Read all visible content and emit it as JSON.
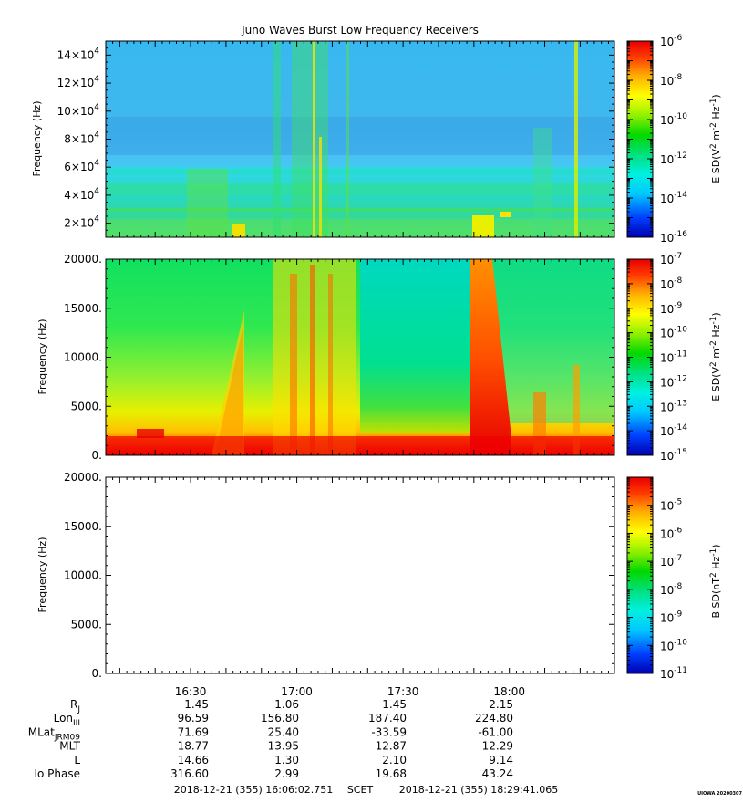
{
  "chart_data": [
    {
      "type": "heatmap",
      "title": "Juno Waves Burst Low Frequency Receivers",
      "ylabel": "Frequency (Hz)",
      "ylim": [
        10000,
        150000
      ],
      "yticks": [
        {
          "m": "2×10",
          "e": "4"
        },
        {
          "m": "4×10",
          "e": "4"
        },
        {
          "m": "6×10",
          "e": "4"
        },
        {
          "m": "8×10",
          "e": "4"
        },
        {
          "m": "10×10",
          "e": "4"
        },
        {
          "m": "12×10",
          "e": "4"
        },
        {
          "m": "14×10",
          "e": "4"
        }
      ],
      "ytick_values": [
        20000,
        40000,
        60000,
        80000,
        100000,
        120000,
        140000
      ],
      "colorbar": {
        "label_main": "E SD(V",
        "label_sup1": "2",
        "label_mid": " m",
        "label_sup2": "-2",
        "label_end": " Hz",
        "label_sup3": "-1",
        "label_close": ")",
        "scale": "log",
        "range": [
          1e-16,
          1e-06
        ],
        "tick_exps": [
          "-6",
          "-8",
          "-10",
          "-12",
          "-14",
          "-16"
        ],
        "tick_values": [
          1e-06,
          1e-08,
          1e-10,
          1e-12,
          1e-14,
          1e-16
        ],
        "colormap": [
          "#0000c0",
          "#0050ff",
          "#00d8ff",
          "#00e890",
          "#00e000",
          "#a8f000",
          "#ffff00",
          "#ffb000",
          "#ff3000",
          "#f00000"
        ]
      }
    },
    {
      "type": "heatmap",
      "ylabel": "Frequency (Hz)",
      "ylim": [
        0,
        20000
      ],
      "yticks": [
        "20000.",
        "15000.",
        "10000.",
        "5000.",
        "0."
      ],
      "ytick_values": [
        20000,
        15000,
        10000,
        5000,
        0
      ],
      "colorbar": {
        "label_main": "E SD(V",
        "label_sup1": "2",
        "label_mid": " m",
        "label_sup2": "-2",
        "label_end": " Hz",
        "label_sup3": "-1",
        "label_close": ")",
        "scale": "log",
        "range": [
          1e-15,
          1e-07
        ],
        "tick_exps": [
          "-7",
          "-8",
          "-9",
          "-10",
          "-11",
          "-12",
          "-13",
          "-14",
          "-15"
        ],
        "tick_values": [
          1e-07,
          1e-08,
          1e-09,
          1e-10,
          1e-11,
          1e-12,
          1e-13,
          1e-14,
          1e-15
        ]
      }
    },
    {
      "type": "heatmap",
      "ylabel": "Frequency (Hz)",
      "ylim": [
        0,
        20000
      ],
      "yticks": [
        "20000.",
        "15000.",
        "10000.",
        "5000.",
        "0."
      ],
      "ytick_values": [
        20000,
        15000,
        10000,
        5000,
        0
      ],
      "colorbar": {
        "label_main": "B SD(nT",
        "label_sup1": "2",
        "label_mid": "",
        "label_sup2": "",
        "label_end": " Hz",
        "label_sup3": "-1",
        "label_close": ")",
        "scale": "log",
        "range": [
          1e-11,
          0.0001
        ],
        "tick_exps": [
          "-5",
          "-6",
          "-7",
          "-8",
          "-9",
          "-10",
          "-11"
        ],
        "tick_values": [
          1e-05,
          1e-06,
          1e-07,
          1e-08,
          1e-09,
          1e-10,
          1e-11
        ]
      }
    }
  ],
  "time_axis": {
    "start": "16:06:02.751",
    "end": "18:29:41.065",
    "tick_labels": [
      "16:30",
      "17:00",
      "17:30",
      "18:00"
    ],
    "tick_values": [
      "16:30",
      "17:00",
      "17:30",
      "18:00"
    ]
  },
  "ephemeris": [
    {
      "label": "R",
      "sub": "J",
      "values": [
        "1.45",
        "1.06",
        "1.45",
        "2.15"
      ]
    },
    {
      "label": "Lon",
      "sub": "III",
      "values": [
        "96.59",
        "156.80",
        "187.40",
        "224.80"
      ]
    },
    {
      "label": "MLat",
      "sub": "JRM09",
      "values": [
        "71.69",
        "25.40",
        "-33.59",
        "-61.00"
      ]
    },
    {
      "label": "MLT",
      "sub": "",
      "values": [
        "18.77",
        "13.95",
        "12.87",
        "12.29"
      ]
    },
    {
      "label": "L",
      "sub": "",
      "values": [
        "14.66",
        "1.30",
        "2.10",
        "9.14"
      ]
    },
    {
      "label": "Io Phase",
      "sub": "",
      "values": [
        "316.60",
        "2.99",
        "19.68",
        "43.24"
      ]
    }
  ],
  "footer": {
    "start": "2018-12-21 (355) 16:06:02.751",
    "scet": "SCET",
    "end": "2018-12-21 (355) 18:29:41.065",
    "stamp": "UIOWA 20200307"
  }
}
